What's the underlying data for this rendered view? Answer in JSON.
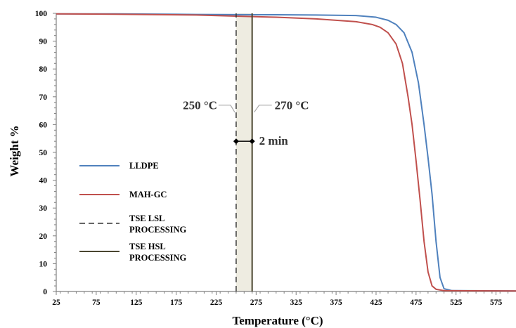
{
  "chart_data": {
    "type": "line",
    "title": "",
    "xlabel": "Temperature (°C)",
    "ylabel": "Weight %",
    "xlim": [
      25,
      600
    ],
    "ylim": [
      0,
      100
    ],
    "xticks": [
      "25",
      "75",
      "125",
      "175",
      "225",
      "275",
      "325",
      "375",
      "425",
      "475",
      "525",
      "575"
    ],
    "yticks": [
      "0",
      "10",
      "20",
      "30",
      "40",
      "50",
      "60",
      "70",
      "80",
      "90",
      "100"
    ],
    "grid": false,
    "legend_position": "left-center",
    "series": [
      {
        "name": "LLDPE",
        "color": "#4f81bd",
        "style": "solid",
        "points": [
          [
            25,
            99.8
          ],
          [
            100,
            99.8
          ],
          [
            200,
            99.6
          ],
          [
            300,
            99.5
          ],
          [
            350,
            99.4
          ],
          [
            400,
            99.2
          ],
          [
            425,
            98.6
          ],
          [
            440,
            97.5
          ],
          [
            450,
            96
          ],
          [
            460,
            93
          ],
          [
            470,
            86
          ],
          [
            478,
            75
          ],
          [
            485,
            60
          ],
          [
            490,
            48
          ],
          [
            495,
            35
          ],
          [
            500,
            18
          ],
          [
            505,
            5
          ],
          [
            510,
            1
          ],
          [
            520,
            0.3
          ],
          [
            600,
            0.2
          ]
        ]
      },
      {
        "name": "MAH-GC",
        "color": "#c0504d",
        "style": "solid",
        "points": [
          [
            25,
            99.8
          ],
          [
            100,
            99.7
          ],
          [
            200,
            99.4
          ],
          [
            250,
            99
          ],
          [
            300,
            98.6
          ],
          [
            350,
            98
          ],
          [
            400,
            97
          ],
          [
            420,
            96
          ],
          [
            430,
            95
          ],
          [
            440,
            93
          ],
          [
            450,
            89
          ],
          [
            458,
            82
          ],
          [
            465,
            70
          ],
          [
            470,
            60
          ],
          [
            475,
            47
          ],
          [
            480,
            33
          ],
          [
            485,
            18
          ],
          [
            490,
            7
          ],
          [
            495,
            2
          ],
          [
            500,
            0.8
          ],
          [
            510,
            0.3
          ],
          [
            600,
            0.2
          ]
        ]
      },
      {
        "name": "TSE LSL PROCESSING",
        "color": "#333333",
        "style": "dashed",
        "points": [
          [
            250,
            0
          ],
          [
            250,
            100
          ]
        ]
      },
      {
        "name": "TSE HSL PROCESSING",
        "color": "#4a4630",
        "style": "solid",
        "points": [
          [
            270,
            0
          ],
          [
            270,
            100
          ]
        ]
      }
    ],
    "shaded_region": {
      "x": [
        250,
        270
      ],
      "color": "#eeece1"
    },
    "annotations": [
      {
        "text": "250 °C",
        "x": 250
      },
      {
        "text": "270 °C",
        "x": 270
      },
      {
        "text": "2 min",
        "x": [
          250,
          270
        ],
        "y": 54
      }
    ]
  }
}
